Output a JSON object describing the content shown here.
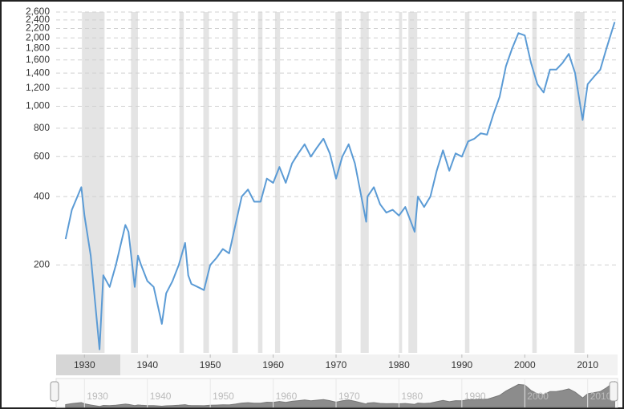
{
  "chart_data": {
    "type": "line",
    "x": [
      1927,
      1928,
      1929.5,
      1930,
      1931,
      1932.4,
      1933,
      1934,
      1935,
      1936.5,
      1937,
      1938,
      1938.5,
      1939,
      1940,
      1941,
      1942.3,
      1943,
      1944,
      1945,
      1946,
      1946.5,
      1947,
      1948,
      1949,
      1950,
      1951,
      1952,
      1953,
      1954,
      1955,
      1956,
      1957,
      1958,
      1959,
      1960,
      1961,
      1962,
      1963,
      1964,
      1965,
      1966,
      1967,
      1968,
      1969,
      1970,
      1971,
      1972,
      1973,
      1974.8,
      1975,
      1976,
      1977,
      1978,
      1979,
      1980,
      1981,
      1982.5,
      1983,
      1984,
      1985,
      1986,
      1987,
      1988,
      1989,
      1990,
      1991,
      1992,
      1993,
      1994,
      1995,
      1996,
      1997,
      1998,
      1999,
      2000,
      2001,
      2002,
      2003,
      2004,
      2005,
      2006,
      2007,
      2008,
      2009.2,
      2010,
      2011,
      2012,
      2013,
      2014.3
    ],
    "series": [
      {
        "color": "#5b9bd5",
        "values": [
          260,
          350,
          440,
          330,
          220,
          85,
          180,
          160,
          200,
          300,
          280,
          160,
          220,
          200,
          170,
          160,
          110,
          150,
          170,
          200,
          250,
          180,
          165,
          160,
          155,
          200,
          215,
          235,
          225,
          300,
          400,
          430,
          380,
          380,
          480,
          460,
          540,
          460,
          560,
          620,
          680,
          600,
          660,
          720,
          620,
          480,
          600,
          680,
          560,
          310,
          400,
          440,
          370,
          340,
          350,
          330,
          360,
          280,
          400,
          360,
          400,
          520,
          640,
          520,
          620,
          600,
          700,
          720,
          760,
          750,
          920,
          1100,
          1500,
          1800,
          2100,
          2050,
          1550,
          1250,
          1150,
          1450,
          1450,
          1550,
          1700,
          1400,
          870,
          1250,
          1350,
          1450,
          1800,
          2350
        ]
      }
    ],
    "xlim": [
      1925.5,
      2014.5
    ],
    "xticks": [
      1930,
      1940,
      1950,
      1960,
      1970,
      1980,
      1990,
      2000,
      2010
    ],
    "ylim": [
      82,
      2600
    ],
    "yticks": [
      200,
      400,
      600,
      800,
      {
        "value": 1000,
        "label": "1,000"
      },
      {
        "value": 1200,
        "label": "1,200"
      },
      {
        "value": 1400,
        "label": "1,400"
      },
      {
        "value": 1600,
        "label": "1,600"
      },
      {
        "value": 1800,
        "label": "1,800"
      },
      {
        "value": 2000,
        "label": "2,000"
      },
      {
        "value": 2200,
        "label": "2,200"
      },
      {
        "value": 2400,
        "label": "2,400"
      },
      {
        "value": 2600,
        "label": "2,600"
      }
    ],
    "log_scale": true,
    "grid": true,
    "recessions": [
      [
        1929.6,
        1933.2
      ],
      [
        1937.4,
        1938.5
      ],
      [
        1945.1,
        1945.8
      ],
      [
        1948.9,
        1949.8
      ],
      [
        1953.5,
        1954.4
      ],
      [
        1957.6,
        1958.3
      ],
      [
        1960.3,
        1961.1
      ],
      [
        1969.9,
        1970.9
      ],
      [
        1973.9,
        1975.2
      ],
      [
        1980.0,
        1980.5
      ],
      [
        1981.5,
        1982.9
      ],
      [
        1990.5,
        1991.2
      ],
      [
        2001.2,
        2001.9
      ],
      [
        2007.9,
        2009.5
      ]
    ],
    "recession_color": "#e4e4e4"
  }
}
